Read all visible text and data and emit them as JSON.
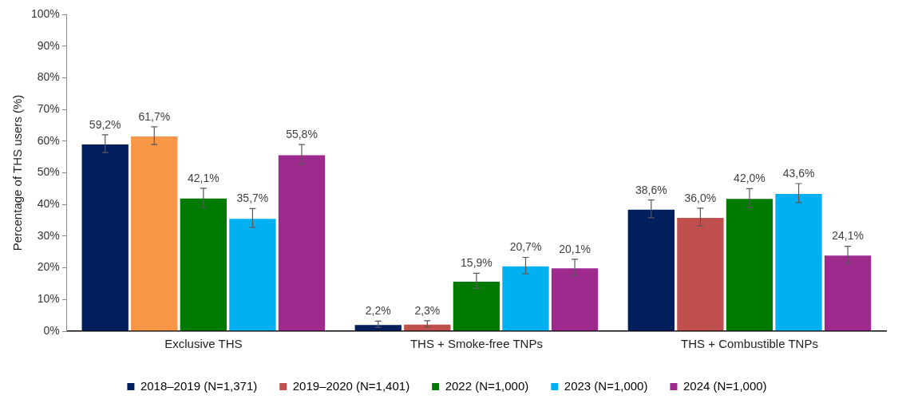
{
  "chart_data": {
    "type": "bar",
    "ylabel": "Percentage of THS users (%)",
    "categories": [
      "Exclusive THS",
      "THS + Smoke-free TNPs",
      "THS + Combustible TNPs"
    ],
    "series": [
      {
        "name": "2018–2019 (N=1,371)",
        "color": "#001f5c",
        "values": [
          59.2,
          2.2,
          38.6
        ],
        "errors": [
          2.8,
          1,
          2.8
        ],
        "value_labels": [
          "59,2%",
          "2,2%",
          "38,6%"
        ]
      },
      {
        "name": "2019–2020 (N=1,401)",
        "color": "#c0504d",
        "colors": [
          "#f79646",
          "#c0504d",
          "#c0504d"
        ],
        "values": [
          61.7,
          2.3,
          36.0
        ],
        "errors": [
          2.8,
          1,
          2.8
        ],
        "value_labels": [
          "61,7%",
          "2,3%",
          "36,0%"
        ]
      },
      {
        "name": "2022 (N=1,000)",
        "color": "#007a00",
        "values": [
          42.1,
          15.9,
          42.0
        ],
        "errors": [
          3,
          2.4,
          3
        ],
        "value_labels": [
          "42,1%",
          "15,9%",
          "42,0%"
        ]
      },
      {
        "name": "2023 (N=1,000)",
        "color": "#00b0f0",
        "values": [
          35.7,
          20.7,
          43.6
        ],
        "errors": [
          3,
          2.6,
          3
        ],
        "value_labels": [
          "35,7%",
          "20,7%",
          "43,6%"
        ]
      },
      {
        "name": "2024 (N=1,000)",
        "color": "#9e2a8e",
        "values": [
          55.8,
          20.1,
          24.1
        ],
        "errors": [
          3.1,
          2.6,
          2.7
        ],
        "value_labels": [
          "55,8%",
          "20,1%",
          "24,1%"
        ]
      }
    ],
    "ylim": [
      0,
      100
    ],
    "yticks": [
      {
        "value": 0,
        "label": "0%"
      },
      {
        "value": 10,
        "label": "10%"
      },
      {
        "value": 20,
        "label": "20%"
      },
      {
        "value": 30,
        "label": "30%"
      },
      {
        "value": 40,
        "label": "40%"
      },
      {
        "value": 50,
        "label": "50%"
      },
      {
        "value": 60,
        "label": "60%"
      },
      {
        "value": 70,
        "label": "70%"
      },
      {
        "value": 80,
        "label": "80%"
      },
      {
        "value": 90,
        "label": "90%"
      },
      {
        "value": 100,
        "label": "100%"
      }
    ],
    "grid": false,
    "legend": "bottom"
  }
}
